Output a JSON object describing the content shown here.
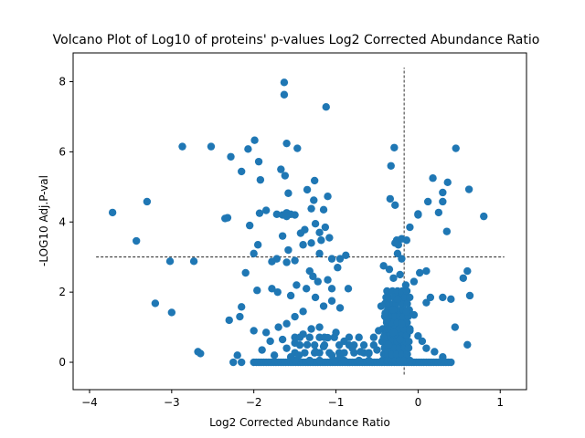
{
  "chart_data": {
    "type": "scatter",
    "title": "Volcano Plot of Log10 of proteins' p-values Log2 Corrected Abundance Ratio",
    "xlabel": "Log2 Corrected Abundance Ratio",
    "ylabel": "-LOG10 Adj.P-val",
    "xlim": [
      -4.2,
      1.32
    ],
    "ylim": [
      -0.78,
      8.82
    ],
    "xticks": [
      -4,
      -3,
      -2,
      -1,
      0,
      1
    ],
    "yticks": [
      0,
      2,
      4,
      6,
      8
    ],
    "grid": false,
    "legend": "none",
    "point_color": "#1f77b4",
    "reference_lines": {
      "vertical_x": -0.17,
      "horizontal_y": 3.0,
      "horizontal_x_range": [
        -3.92,
        1.05
      ],
      "vertical_y_range": [
        -0.35,
        8.4
      ]
    },
    "points": [
      [
        -1.63,
        7.98
      ],
      [
        -1.63,
        7.63
      ],
      [
        -1.12,
        7.28
      ],
      [
        -2.87,
        6.15
      ],
      [
        -2.52,
        6.15
      ],
      [
        -1.99,
        6.33
      ],
      [
        -2.07,
        6.08
      ],
      [
        -1.94,
        5.72
      ],
      [
        -1.92,
        5.2
      ],
      [
        -2.28,
        5.86
      ],
      [
        -2.15,
        5.44
      ],
      [
        -1.6,
        6.24
      ],
      [
        -1.47,
        6.1
      ],
      [
        -1.67,
        5.5
      ],
      [
        -1.62,
        5.32
      ],
      [
        -1.58,
        4.82
      ],
      [
        -1.35,
        4.92
      ],
      [
        -1.26,
        5.18
      ],
      [
        -1.27,
        4.62
      ],
      [
        -1.1,
        4.73
      ],
      [
        -0.29,
        6.12
      ],
      [
        -0.33,
        5.6
      ],
      [
        -0.34,
        4.66
      ],
      [
        -0.28,
        4.48
      ],
      [
        0.46,
        6.1
      ],
      [
        0.62,
        4.93
      ],
      [
        0.18,
        5.25
      ],
      [
        0.36,
        5.13
      ],
      [
        0.3,
        4.84
      ],
      [
        0.12,
        4.58
      ],
      [
        0.3,
        4.58
      ],
      [
        0.25,
        4.27
      ],
      [
        0.0,
        4.23
      ],
      [
        0.35,
        3.73
      ],
      [
        0.8,
        4.16
      ],
      [
        -3.72,
        4.27
      ],
      [
        -3.3,
        4.58
      ],
      [
        -3.43,
        3.46
      ],
      [
        -3.02,
        2.88
      ],
      [
        -2.73,
        2.88
      ],
      [
        -3.2,
        1.68
      ],
      [
        -3.0,
        1.42
      ],
      [
        -2.68,
        0.3
      ],
      [
        -2.32,
        4.12
      ],
      [
        -2.35,
        4.1
      ],
      [
        -2.05,
        3.9
      ],
      [
        -1.95,
        3.35
      ],
      [
        -2.0,
        3.1
      ],
      [
        -1.85,
        4.33
      ],
      [
        -1.93,
        4.25
      ],
      [
        -1.72,
        4.22
      ],
      [
        -1.65,
        4.2
      ],
      [
        -1.6,
        4.26
      ],
      [
        -1.55,
        4.22
      ],
      [
        -1.6,
        4.16
      ],
      [
        -1.5,
        4.2
      ],
      [
        -1.43,
        3.68
      ],
      [
        -1.38,
        3.78
      ],
      [
        -1.3,
        4.38
      ],
      [
        -1.25,
        3.95
      ],
      [
        -1.2,
        3.7
      ],
      [
        -1.15,
        4.35
      ],
      [
        -1.13,
        3.85
      ],
      [
        -1.18,
        3.48
      ],
      [
        -1.08,
        3.55
      ],
      [
        -1.3,
        3.4
      ],
      [
        -1.4,
        3.35
      ],
      [
        -1.65,
        3.6
      ],
      [
        -1.58,
        3.2
      ],
      [
        -1.72,
        2.95
      ],
      [
        -1.6,
        2.85
      ],
      [
        -1.5,
        2.9
      ],
      [
        -1.78,
        2.87
      ],
      [
        -1.05,
        2.95
      ],
      [
        -0.95,
        2.95
      ],
      [
        -0.88,
        3.05
      ],
      [
        -1.2,
        3.1
      ],
      [
        -0.2,
        3.52
      ],
      [
        -0.26,
        3.48
      ],
      [
        -0.24,
        3.35
      ],
      [
        -0.28,
        3.4
      ],
      [
        -0.14,
        3.48
      ],
      [
        -0.1,
        3.85
      ],
      [
        -0.2,
        2.95
      ],
      [
        -0.25,
        3.1
      ],
      [
        0.0,
        4.2
      ],
      [
        -2.1,
        2.55
      ],
      [
        -2.3,
        1.2
      ],
      [
        -2.15,
        1.58
      ],
      [
        -2.17,
        1.3
      ],
      [
        -1.96,
        2.05
      ],
      [
        -1.78,
        2.1
      ],
      [
        -1.71,
        2.0
      ],
      [
        -1.55,
        1.9
      ],
      [
        -1.48,
        2.2
      ],
      [
        -1.32,
        2.6
      ],
      [
        -1.28,
        2.45
      ],
      [
        -1.22,
        2.3
      ],
      [
        -1.1,
        2.35
      ],
      [
        -1.05,
        2.1
      ],
      [
        -0.98,
        2.7
      ],
      [
        -0.85,
        2.1
      ],
      [
        -1.36,
        2.1
      ],
      [
        -1.25,
        1.85
      ],
      [
        -1.15,
        1.6
      ],
      [
        -1.05,
        1.75
      ],
      [
        -0.95,
        1.55
      ],
      [
        -1.4,
        1.45
      ],
      [
        -1.5,
        1.3
      ],
      [
        -1.6,
        1.1
      ],
      [
        -1.7,
        1.0
      ],
      [
        -1.85,
        0.85
      ],
      [
        -2.0,
        0.9
      ],
      [
        -0.42,
        2.75
      ],
      [
        -0.35,
        2.65
      ],
      [
        -0.3,
        2.4
      ],
      [
        -0.22,
        2.5
      ],
      [
        -0.15,
        2.2
      ],
      [
        -0.05,
        2.3
      ],
      [
        0.02,
        2.55
      ],
      [
        0.1,
        2.6
      ],
      [
        0.15,
        1.85
      ],
      [
        0.3,
        1.85
      ],
      [
        0.4,
        1.8
      ],
      [
        0.55,
        2.4
      ],
      [
        0.6,
        2.6
      ],
      [
        0.63,
        1.9
      ],
      [
        0.45,
        1.0
      ],
      [
        0.6,
        0.5
      ],
      [
        0.1,
        1.7
      ],
      [
        -0.05,
        1.35
      ],
      [
        -0.45,
        1.6
      ],
      [
        -0.4,
        1.4
      ],
      [
        -0.38,
        1.2
      ],
      [
        -0.3,
        1.5
      ],
      [
        -0.25,
        1.8
      ],
      [
        -0.2,
        1.1
      ],
      [
        -0.1,
        0.9
      ],
      [
        0.0,
        0.75
      ],
      [
        0.05,
        0.6
      ],
      [
        -0.48,
        0.9
      ],
      [
        -0.42,
        0.7
      ],
      [
        -0.36,
        0.5
      ],
      [
        -0.3,
        0.85
      ],
      [
        -0.22,
        0.65
      ],
      [
        -0.14,
        1.45
      ],
      [
        0.1,
        0.4
      ],
      [
        0.2,
        0.3
      ],
      [
        0.3,
        0.15
      ],
      [
        -2.65,
        0.25
      ],
      [
        -2.2,
        0.2
      ],
      [
        -2.25,
        0.0
      ],
      [
        -2.15,
        0.0
      ],
      [
        -1.9,
        0.35
      ],
      [
        -1.8,
        0.6
      ],
      [
        -1.6,
        0.4
      ],
      [
        -1.5,
        0.55
      ],
      [
        -1.4,
        0.8
      ],
      [
        -1.3,
        0.95
      ],
      [
        -1.2,
        1.0
      ],
      [
        -1.1,
        0.7
      ],
      [
        -1.0,
        0.85
      ],
      [
        -0.9,
        0.6
      ],
      [
        -0.8,
        0.4
      ],
      [
        -0.7,
        0.3
      ],
      [
        -0.6,
        0.25
      ],
      [
        -0.5,
        0.35
      ],
      [
        -1.35,
        0.5
      ],
      [
        -1.25,
        0.3
      ],
      [
        -1.15,
        0.45
      ],
      [
        -1.05,
        0.2
      ],
      [
        -0.95,
        0.15
      ],
      [
        -1.45,
        0.2
      ],
      [
        -1.55,
        0.15
      ],
      [
        -1.75,
        0.2
      ],
      [
        -1.65,
        0.65
      ]
    ],
    "baseline_cluster": {
      "y": 0.0,
      "x_range": [
        -2.0,
        0.4
      ],
      "dense_x_range": [
        -0.42,
        -0.12
      ]
    }
  }
}
